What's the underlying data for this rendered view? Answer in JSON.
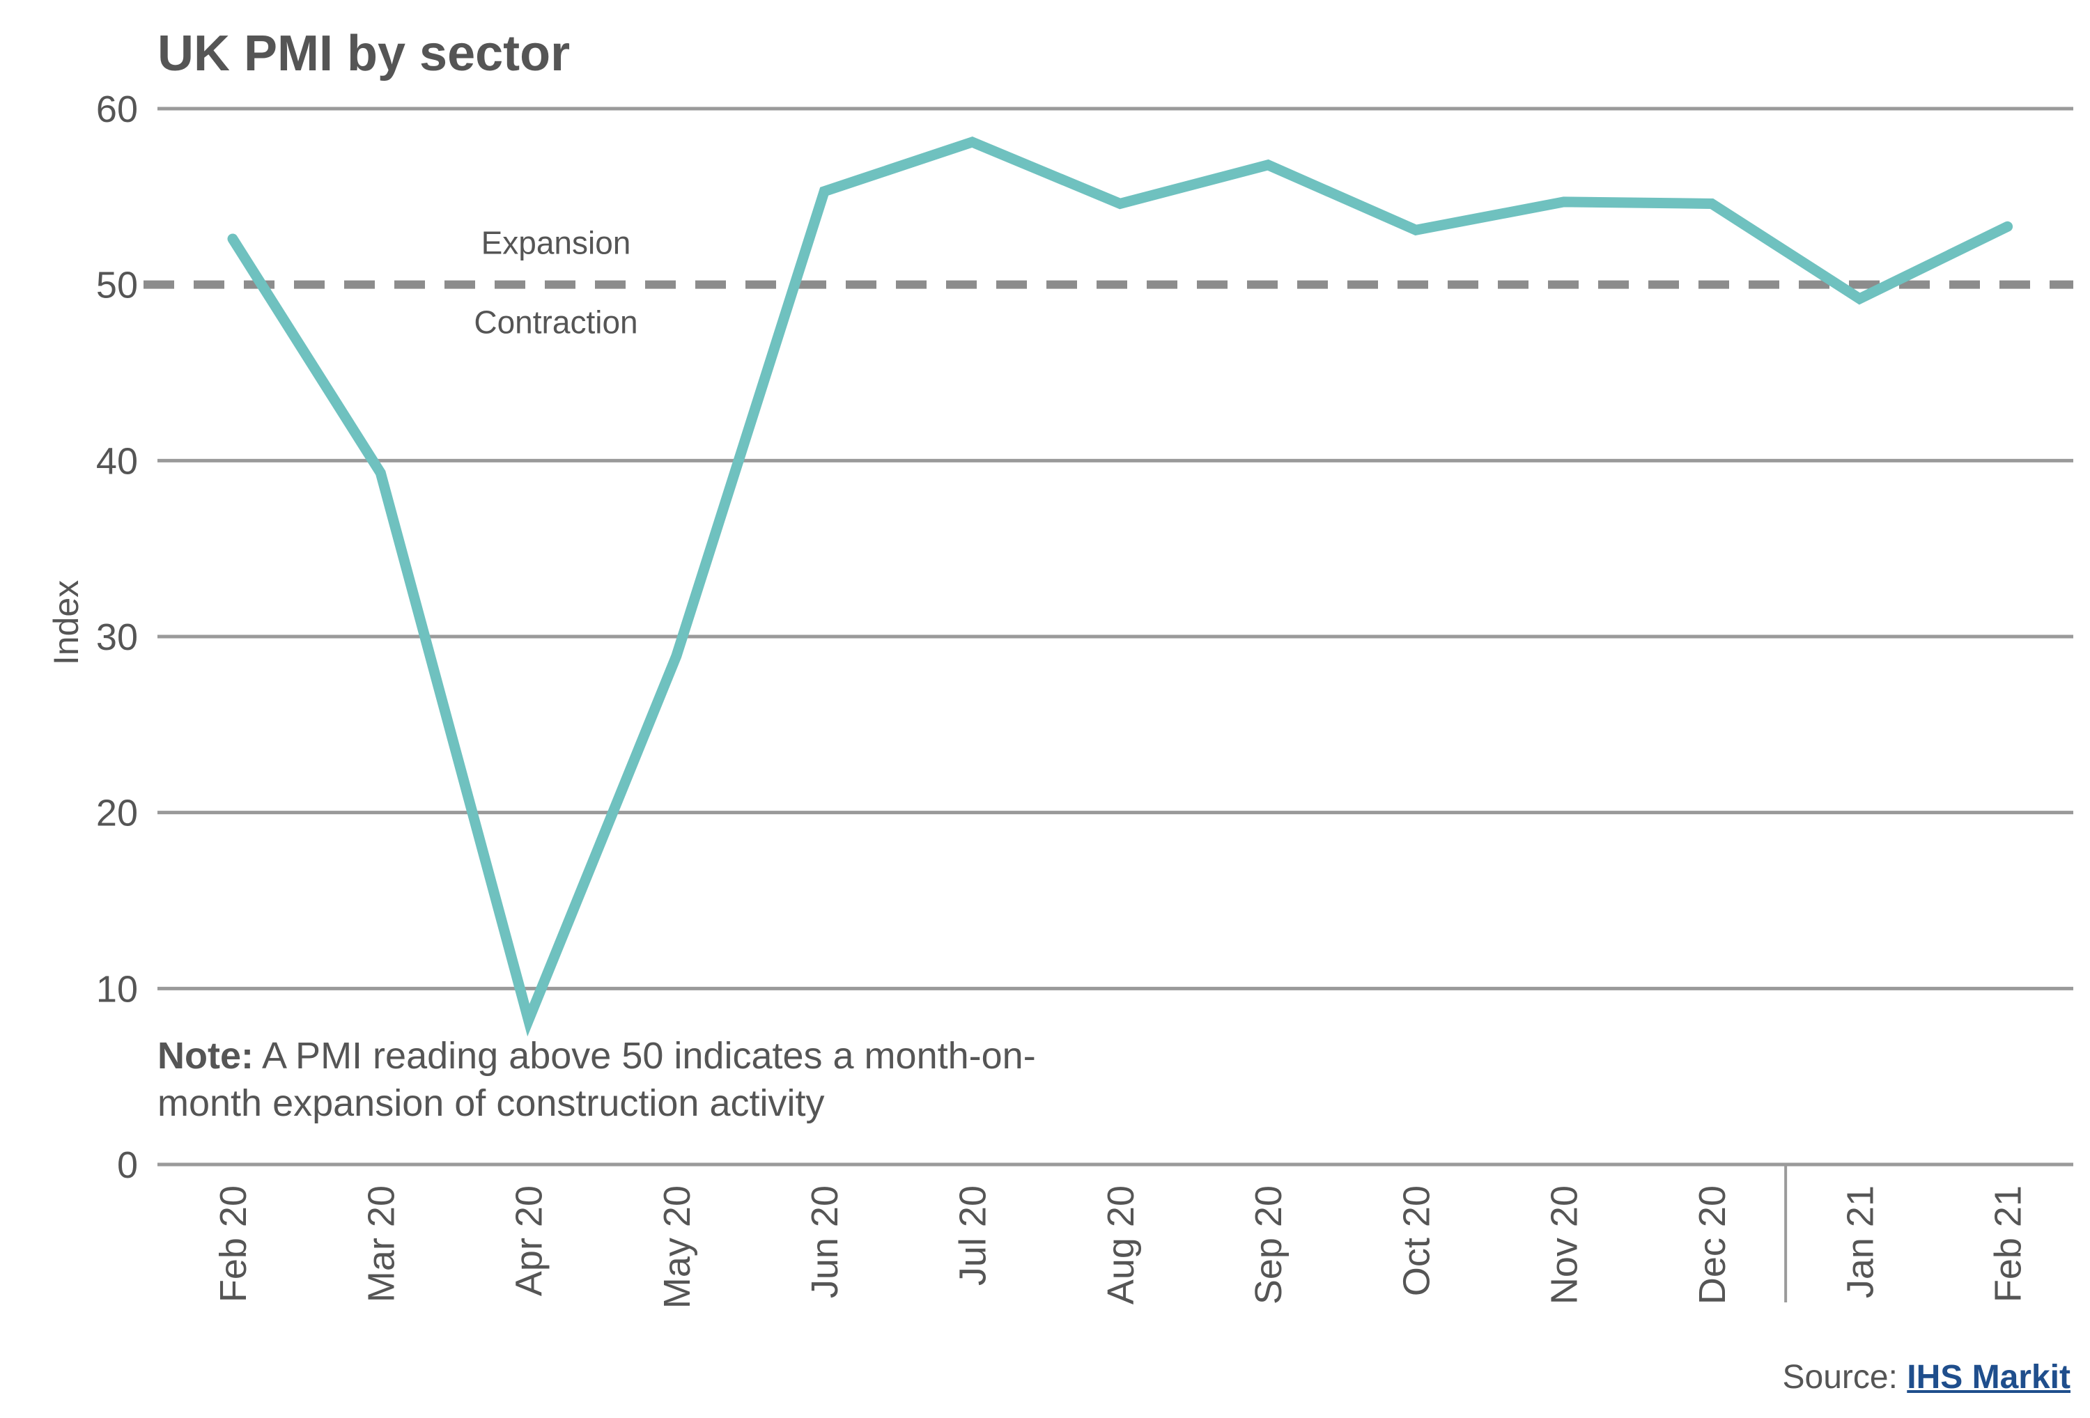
{
  "chart_data": {
    "type": "line",
    "title": "UK PMI by sector",
    "ylabel": "Index",
    "xlabel": "",
    "ylim": [
      0,
      60
    ],
    "yticks": [
      0,
      10,
      20,
      30,
      40,
      50,
      60
    ],
    "grid": true,
    "categories": [
      "Feb 20",
      "Mar 20",
      "Apr 20",
      "May 20",
      "Jun 20",
      "Jul 20",
      "Aug 20",
      "Sep 20",
      "Oct 20",
      "Nov 20",
      "Dec 20",
      "Jan 21",
      "Feb 21"
    ],
    "series": [
      {
        "values": [
          52.6,
          39.3,
          8.2,
          28.9,
          55.3,
          58.1,
          54.6,
          56.8,
          53.1,
          54.7,
          54.6,
          49.2,
          53.3
        ]
      }
    ],
    "reference_line": {
      "value": 50,
      "label_above": "Expansion",
      "label_below": "Contraction"
    },
    "year_divider_between": [
      "Dec 20",
      "Jan 21"
    ],
    "line_color": "#6fc1bf",
    "grid_color": "#9a9a9a",
    "reference_color": "#8c8c8c"
  },
  "note": {
    "bold": "Note:",
    "text": " A PMI reading above 50 indicates a month-on-month expansion of construction activity"
  },
  "source": {
    "prefix": "Source: ",
    "link": "IHS Markit"
  }
}
